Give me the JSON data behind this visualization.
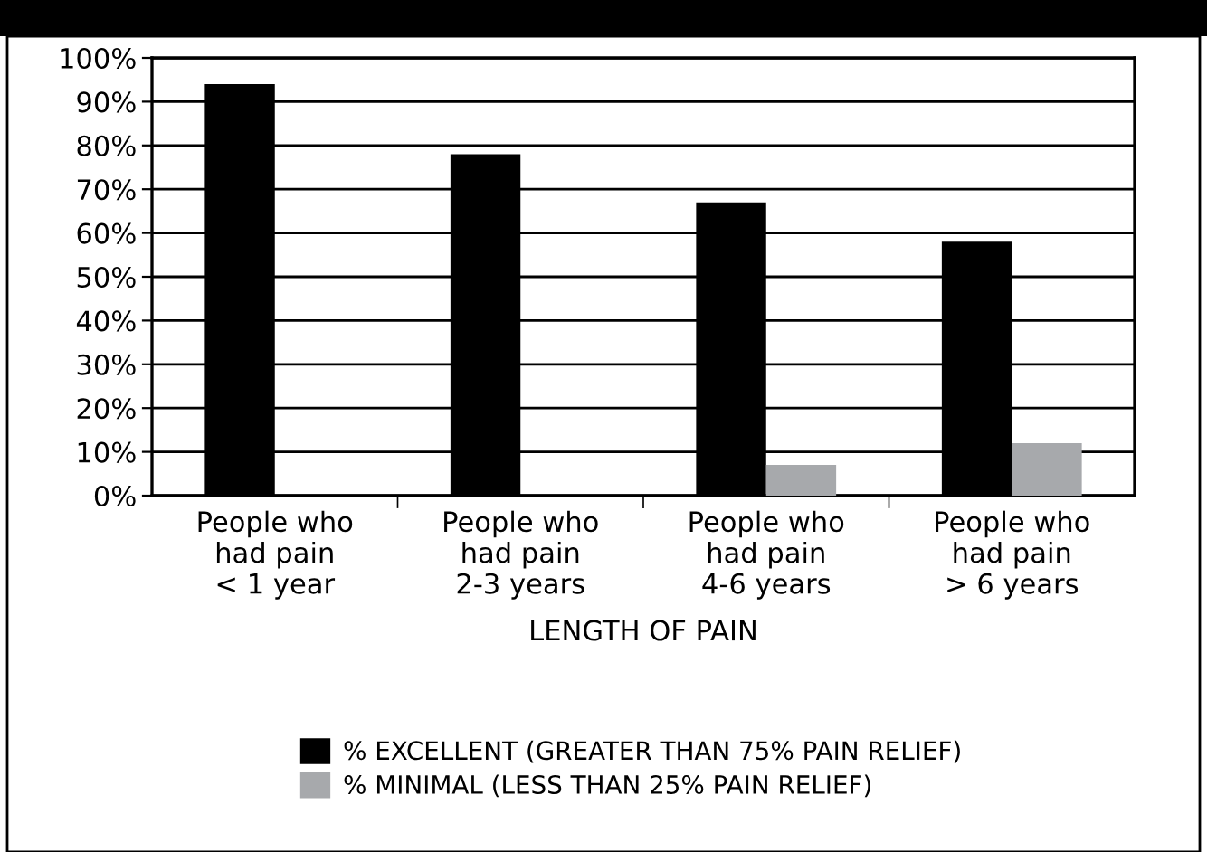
{
  "chart_data": {
    "type": "bar",
    "xlabel": "LENGTH OF PAIN",
    "categories": [
      "People who\nhad pain\n< 1 year",
      "People who\nhad pain\n2-3 years",
      "People who\nhad pain\n4-6 years",
      "People who\nhad pain\n> 6 years"
    ],
    "series": [
      {
        "name": "% EXCELLENT (GREATER THAN 75% PAIN RELIEF)",
        "color": "#000000",
        "values": [
          94,
          78,
          67,
          58
        ]
      },
      {
        "name": "% MINIMAL (LESS THAN 25% PAIN RELIEF)",
        "color": "#a7a9ac",
        "values": [
          0,
          0,
          7,
          12
        ]
      }
    ],
    "ylim": [
      0,
      100
    ],
    "yticks": [
      {
        "value": 0,
        "label": "0%"
      },
      {
        "value": 10,
        "label": "10%"
      },
      {
        "value": 20,
        "label": "20%"
      },
      {
        "value": 30,
        "label": "30%"
      },
      {
        "value": 40,
        "label": "40%"
      },
      {
        "value": 50,
        "label": "50%"
      },
      {
        "value": 60,
        "label": "60%"
      },
      {
        "value": 70,
        "label": "70%"
      },
      {
        "value": 80,
        "label": "80%"
      },
      {
        "value": 90,
        "label": "90%"
      },
      {
        "value": 100,
        "label": "100%"
      }
    ],
    "grid": "y",
    "legend": "bottom"
  }
}
